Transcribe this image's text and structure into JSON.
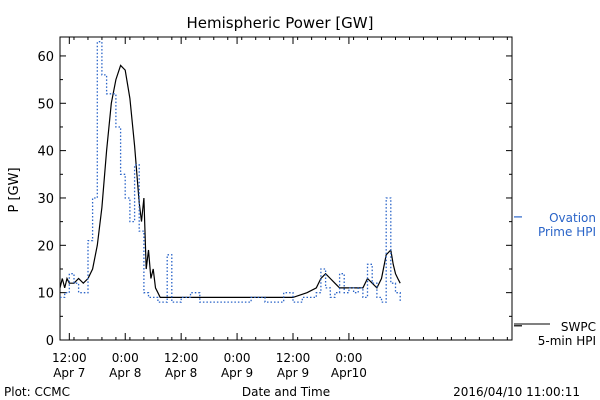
{
  "chart_data": {
    "type": "line",
    "title": "Hemispheric Power [GW]",
    "xlabel": "Date and Time",
    "ylabel": "P [GW]",
    "ylim": [
      0,
      64
    ],
    "yticks": [
      0,
      10,
      20,
      30,
      40,
      50,
      60
    ],
    "xlim": [
      "2016-04-07 10:00",
      "2016-04-11 11:00"
    ],
    "xticks": [
      {
        "t": "2016-04-07 12:00",
        "line1": "12:00",
        "line2": "Apr 7"
      },
      {
        "t": "2016-04-08 00:00",
        "line1": "0:00",
        "line2": "Apr 8"
      },
      {
        "t": "2016-04-08 12:00",
        "line1": "12:00",
        "line2": "Apr 8"
      },
      {
        "t": "2016-04-09 00:00",
        "line1": "0:00",
        "line2": "Apr 9"
      },
      {
        "t": "2016-04-09 12:00",
        "line1": "12:00",
        "line2": "Apr 9"
      },
      {
        "t": "2016-04-10 00:00",
        "line1": "0:00",
        "line2": "Apr10"
      }
    ],
    "grid": false,
    "series": [
      {
        "name": "SWPC 5-min HPI",
        "color": "#000000",
        "style": "solid",
        "x": [
          "2016-04-07 10:00",
          "2016-04-07 10:30",
          "2016-04-07 11:00",
          "2016-04-07 11:30",
          "2016-04-07 12:00",
          "2016-04-07 13:00",
          "2016-04-07 14:00",
          "2016-04-07 15:00",
          "2016-04-07 16:00",
          "2016-04-07 17:00",
          "2016-04-07 18:00",
          "2016-04-07 19:00",
          "2016-04-07 20:00",
          "2016-04-07 21:00",
          "2016-04-07 22:00",
          "2016-04-07 23:00",
          "2016-04-08 00:00",
          "2016-04-08 01:00",
          "2016-04-08 02:00",
          "2016-04-08 03:00",
          "2016-04-08 03:30",
          "2016-04-08 04:00",
          "2016-04-08 04:30",
          "2016-04-08 05:00",
          "2016-04-08 05:30",
          "2016-04-08 06:00",
          "2016-04-08 06:30",
          "2016-04-08 07:00",
          "2016-04-08 07:30",
          "2016-04-08 08:00",
          "2016-04-08 09:00",
          "2016-04-08 12:00",
          "2016-04-08 18:00",
          "2016-04-08 23:00",
          "2016-04-09 00:00",
          "2016-04-09 06:00",
          "2016-04-09 12:00",
          "2016-04-09 15:00",
          "2016-04-09 17:00",
          "2016-04-09 18:00",
          "2016-04-09 19:00",
          "2016-04-09 20:00",
          "2016-04-09 21:00",
          "2016-04-09 22:00",
          "2016-04-10 00:00",
          "2016-04-10 03:00",
          "2016-04-10 04:00",
          "2016-04-10 05:00",
          "2016-04-10 06:00",
          "2016-04-10 07:00",
          "2016-04-10 08:00",
          "2016-04-10 09:00",
          "2016-04-10 09:30",
          "2016-04-10 10:00",
          "2016-04-10 10:30",
          "2016-04-10 11:00"
        ],
        "y": [
          11,
          13,
          11,
          13,
          12,
          12,
          13,
          12,
          13,
          15,
          20,
          28,
          40,
          50,
          55,
          58,
          57,
          51,
          41,
          29,
          25,
          30,
          15,
          19,
          13,
          15,
          11,
          10,
          9,
          9,
          9,
          9,
          9,
          9,
          9,
          9,
          9,
          10,
          11,
          13,
          14,
          13,
          12,
          11,
          11,
          11,
          13,
          12,
          11,
          13,
          18,
          19,
          16,
          14,
          13,
          12
        ]
      },
      {
        "name": "Ovation Prime HPI",
        "color": "#2a64c8",
        "style": "dotted",
        "x": [
          "2016-04-07 10:00",
          "2016-04-07 11:00",
          "2016-04-07 12:00",
          "2016-04-07 13:00",
          "2016-04-07 14:00",
          "2016-04-07 15:00",
          "2016-04-07 16:00",
          "2016-04-07 17:00",
          "2016-04-07 18:00",
          "2016-04-07 19:00",
          "2016-04-07 20:00",
          "2016-04-07 21:00",
          "2016-04-07 22:00",
          "2016-04-07 23:00",
          "2016-04-08 00:00",
          "2016-04-08 01:00",
          "2016-04-08 02:00",
          "2016-04-08 03:00",
          "2016-04-08 04:00",
          "2016-04-08 05:00",
          "2016-04-08 06:00",
          "2016-04-08 07:00",
          "2016-04-08 08:00",
          "2016-04-08 09:00",
          "2016-04-08 10:00",
          "2016-04-08 11:00",
          "2016-04-08 12:00",
          "2016-04-08 14:00",
          "2016-04-08 16:00",
          "2016-04-08 20:00",
          "2016-04-09 00:00",
          "2016-04-09 03:00",
          "2016-04-09 06:00",
          "2016-04-09 08:00",
          "2016-04-09 09:00",
          "2016-04-09 10:00",
          "2016-04-09 12:00",
          "2016-04-09 14:00",
          "2016-04-09 16:00",
          "2016-04-09 17:00",
          "2016-04-09 18:00",
          "2016-04-09 19:00",
          "2016-04-09 20:00",
          "2016-04-09 21:00",
          "2016-04-09 22:00",
          "2016-04-09 23:00",
          "2016-04-10 00:00",
          "2016-04-10 01:00",
          "2016-04-10 02:00",
          "2016-04-10 03:00",
          "2016-04-10 04:00",
          "2016-04-10 05:00",
          "2016-04-10 06:00",
          "2016-04-10 07:00",
          "2016-04-10 08:00",
          "2016-04-10 09:00",
          "2016-04-10 10:00",
          "2016-04-10 11:00"
        ],
        "y": [
          9,
          10,
          14,
          12,
          10,
          10,
          21,
          30,
          63,
          56,
          52,
          52,
          45,
          35,
          30,
          25,
          37,
          23,
          10,
          9,
          9,
          8,
          8,
          18,
          8,
          8,
          9,
          10,
          8,
          8,
          8,
          9,
          8,
          8,
          8,
          10,
          8,
          9,
          9,
          10,
          15,
          11,
          9,
          10,
          14,
          10,
          11,
          10,
          11,
          9,
          16,
          12,
          9,
          8,
          30,
          12,
          10,
          8
        ]
      }
    ],
    "legend": [
      {
        "series": "Ovation Prime HPI",
        "line1": "Ovation",
        "line2": "Prime HPI",
        "color": "#2a64c8",
        "y": 26
      },
      {
        "series": "SWPC 5-min HPI",
        "line1": "SWPC",
        "line2": "5-min HPI",
        "color": "#000000",
        "y": 3
      }
    ],
    "footer": {
      "left": "Plot: CCMC",
      "right": "2016/04/10 11:00:11"
    }
  }
}
